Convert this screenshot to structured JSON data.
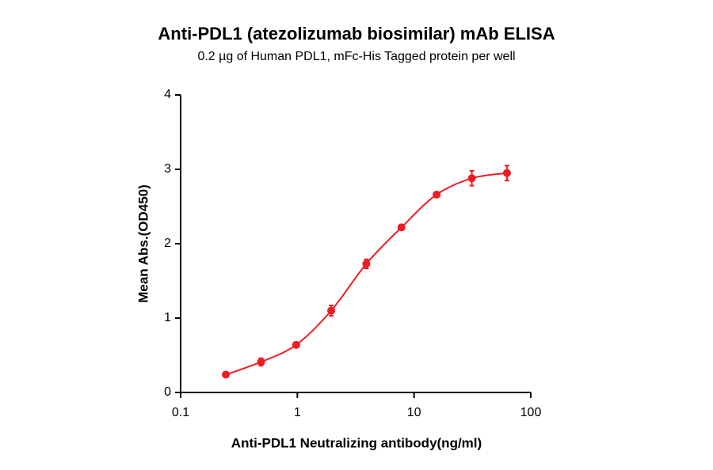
{
  "chart_data": {
    "type": "scatter",
    "title": "Anti-PDL1 (atezolizumab biosimilar) mAb ELISA",
    "subtitle": "0.2 µg of Human PDL1, mFc-His Tagged protein per well",
    "x_label": "Anti-PDL1 Neutralizing antibody(ng/ml)",
    "y_label": "Mean Abs.(OD450)",
    "x_scale": "log",
    "xlim": [
      0.1,
      100
    ],
    "xticks": [
      0.1,
      1,
      10,
      100
    ],
    "ylim": [
      0,
      4
    ],
    "yticks": [
      0,
      1,
      2,
      3,
      4
    ],
    "x": [
      0.244,
      0.488,
      0.977,
      1.95,
      3.9,
      7.8,
      15.6,
      31.25,
      62.5
    ],
    "series": [
      {
        "color": "#ee1c25",
        "values": [
          0.24,
          0.41,
          0.64,
          1.1,
          1.73,
          2.22,
          2.66,
          2.88,
          2.95
        ],
        "errors": [
          0.03,
          0.05,
          0.03,
          0.07,
          0.06,
          0.03,
          0.03,
          0.1,
          0.1
        ]
      }
    ]
  }
}
